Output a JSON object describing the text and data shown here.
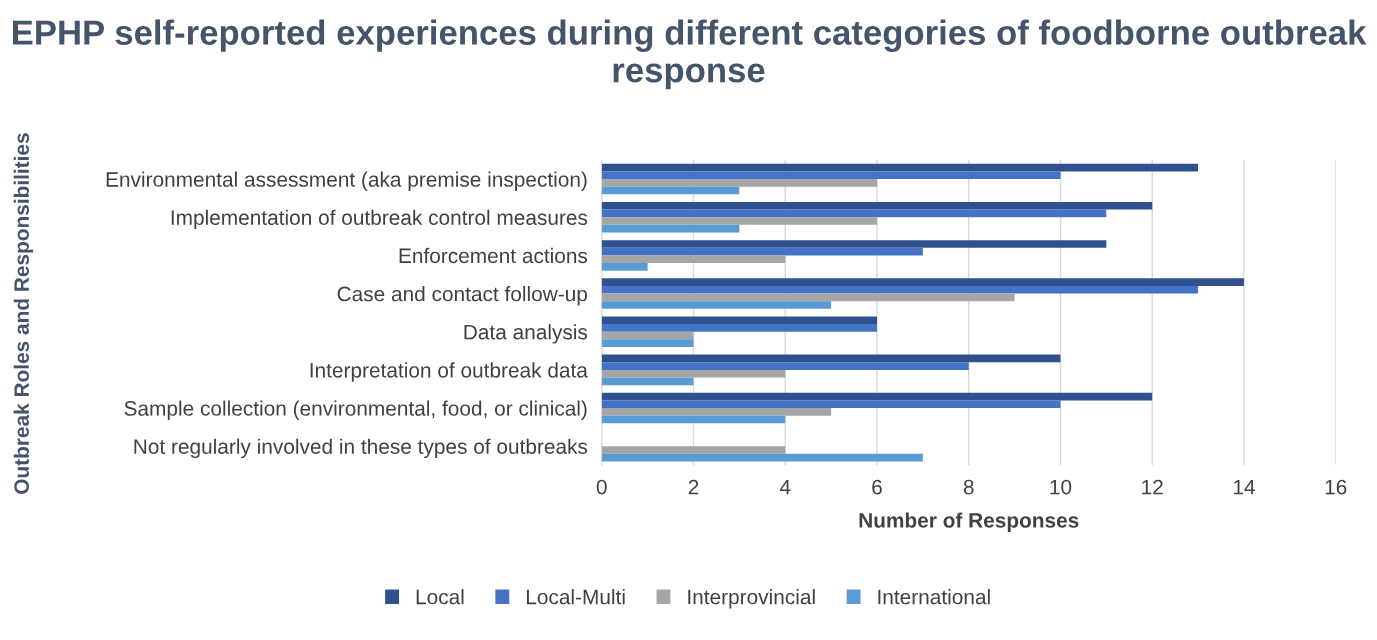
{
  "chart_data": {
    "type": "bar",
    "orientation": "horizontal",
    "title": "EPHP self-reported experiences during different categories of foodborne outbreak response",
    "xlabel": "Number of Responses",
    "ylabel": "Outbreak Roles and Responsibilities",
    "categories": [
      "Environmental assessment (aka premise inspection)",
      "Implementation of outbreak control measures",
      "Enforcement actions",
      "Case and contact follow-up",
      "Data analysis",
      "Interpretation of outbreak data",
      "Sample collection (environmental, food, or clinical)",
      "Not regularly involved in these types of outbreaks"
    ],
    "series": [
      {
        "name": "Local",
        "color": "#2f528f",
        "values": [
          13,
          12,
          11,
          14,
          6,
          10,
          12,
          null
        ]
      },
      {
        "name": "Local-Multi",
        "color": "#4472c4",
        "values": [
          10,
          11,
          7,
          13,
          6,
          8,
          10,
          null
        ]
      },
      {
        "name": "Interprovincial",
        "color": "#a5a5a5",
        "values": [
          6,
          6,
          4,
          9,
          2,
          4,
          5,
          4
        ]
      },
      {
        "name": "International",
        "color": "#5b9bd5",
        "values": [
          3,
          3,
          1,
          5,
          2,
          2,
          4,
          7
        ]
      }
    ],
    "xlim": [
      0,
      16
    ],
    "xticks": [
      0,
      2,
      4,
      6,
      8,
      10,
      12,
      14,
      16
    ],
    "grid": "x",
    "legend": "bottom"
  }
}
